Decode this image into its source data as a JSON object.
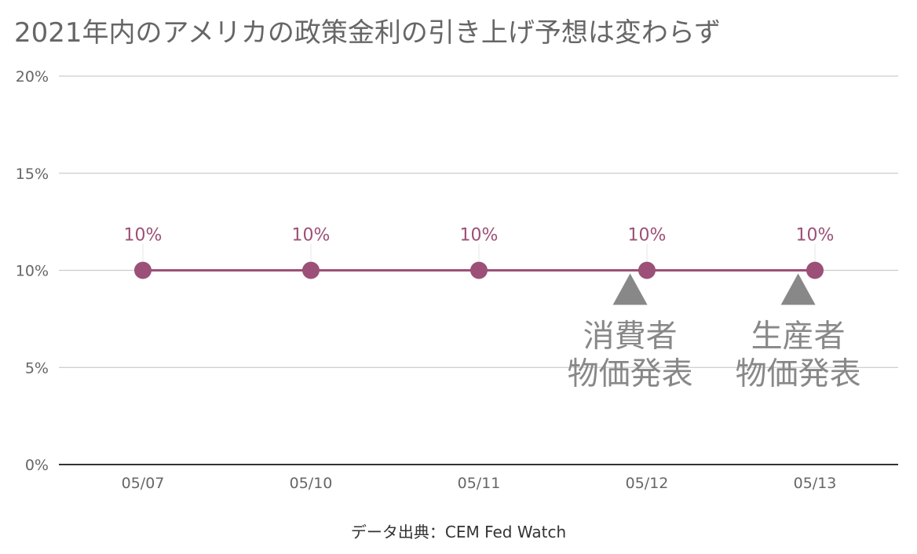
{
  "title": "2021年内のアメリカの政策金利の引き上げ予想は変わらず",
  "source": "データ出典：CEM Fed Watch",
  "colors": {
    "series": "#9c4f77",
    "grid": "#cccccc",
    "axis": "#333333",
    "tick_text": "#666666",
    "annotation": "#888888"
  },
  "chart_data": {
    "type": "line",
    "categories": [
      "05/07",
      "05/10",
      "05/11",
      "05/12",
      "05/13"
    ],
    "series": [
      {
        "values": [
          10,
          10,
          10,
          10,
          10
        ],
        "data_labels": [
          "10%",
          "10%",
          "10%",
          "10%",
          "10%"
        ]
      }
    ],
    "ylim": [
      0,
      20
    ],
    "yticks": [
      0,
      5,
      10,
      15,
      20
    ],
    "ytick_labels": [
      "0%",
      "5%",
      "10%",
      "15%",
      "20%"
    ],
    "grid": true,
    "xlabel": "",
    "ylabel": "",
    "annotations": [
      {
        "between": [
          "05/11",
          "05/12"
        ],
        "marker": "triangle-up",
        "lines": [
          "消費者",
          "物価発表"
        ]
      },
      {
        "between": [
          "05/12",
          "05/13"
        ],
        "marker": "triangle-up",
        "lines": [
          "生産者",
          "物価発表"
        ]
      }
    ]
  }
}
